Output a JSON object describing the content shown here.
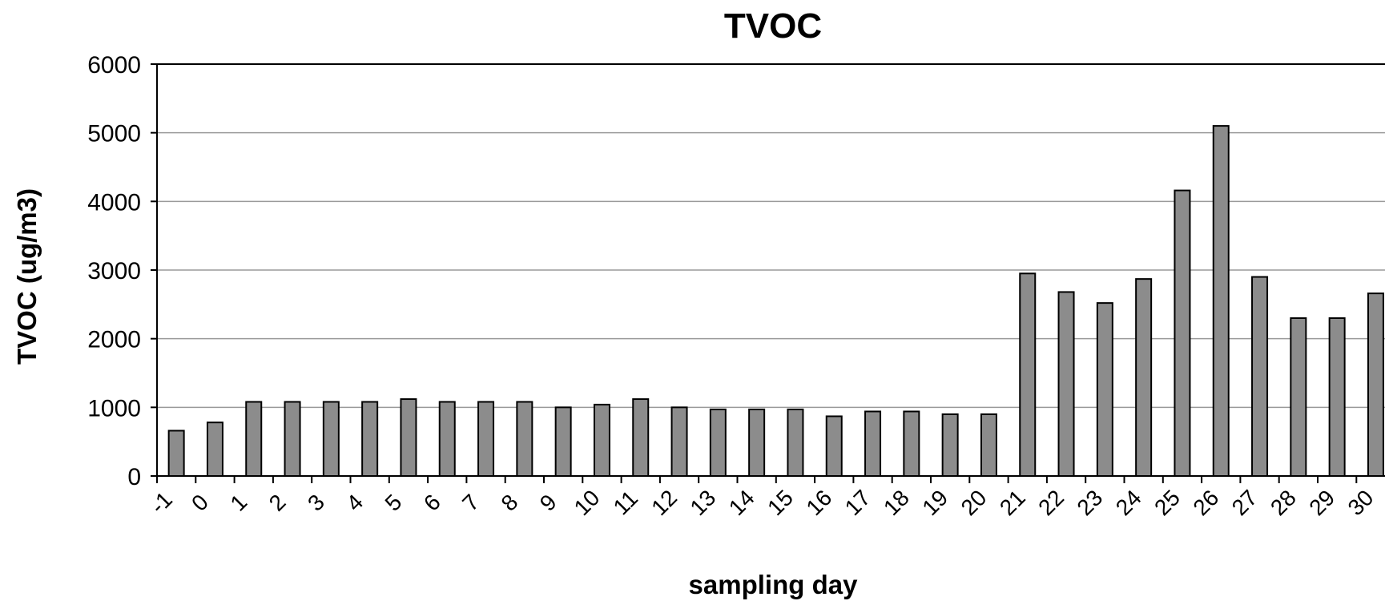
{
  "chart_data": {
    "type": "bar",
    "title": "TVOC",
    "xlabel": "sampling day",
    "ylabel": "TVOC (ug/m3)",
    "ylim": [
      0,
      6000
    ],
    "yticks": [
      0,
      1000,
      2000,
      3000,
      4000,
      5000,
      6000
    ],
    "grid": true,
    "bar_color": "#8c8c8c",
    "categories": [
      "-1",
      "0",
      "1",
      "2",
      "3",
      "4",
      "5",
      "6",
      "7",
      "8",
      "9",
      "10",
      "11",
      "12",
      "13",
      "14",
      "15",
      "16",
      "17",
      "18",
      "19",
      "20",
      "21",
      "22",
      "23",
      "24",
      "25",
      "26",
      "27",
      "28",
      "29",
      "30"
    ],
    "values": [
      660,
      780,
      1080,
      1080,
      1080,
      1080,
      1120,
      1080,
      1080,
      1080,
      1000,
      1040,
      1120,
      1000,
      970,
      970,
      970,
      870,
      940,
      940,
      900,
      900,
      2950,
      2680,
      2520,
      2870,
      4160,
      5100,
      2900,
      2300,
      2300,
      2660
    ]
  }
}
